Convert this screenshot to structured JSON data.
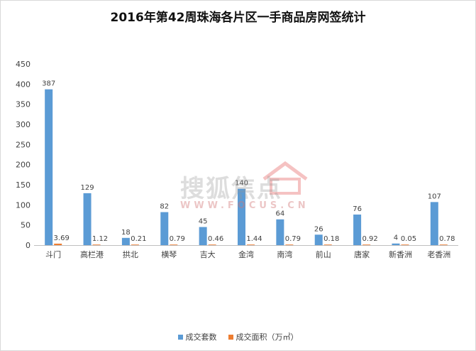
{
  "chart_data": {
    "type": "bar",
    "title": "2016年第42周珠海各片区一手商品房网签统计",
    "categories": [
      "斗门",
      "高栏港",
      "拱北",
      "横琴",
      "吉大",
      "金湾",
      "南湾",
      "前山",
      "唐家",
      "新香洲",
      "老香洲"
    ],
    "series": [
      {
        "name": "成交套数",
        "color": "#5b9bd5",
        "values": [
          387,
          129,
          18,
          82,
          45,
          140,
          64,
          26,
          76,
          4,
          107
        ],
        "labels": [
          "387",
          "129",
          "18",
          "82",
          "45",
          "140",
          "64",
          "26",
          "76",
          "4",
          "107"
        ]
      },
      {
        "name": "成交面积（万㎡）",
        "color": "#ed7d31",
        "values": [
          3.69,
          1.12,
          0.21,
          0.79,
          0.46,
          1.44,
          0.79,
          0.18,
          0.92,
          0.05,
          0.78
        ],
        "labels": [
          "3.69",
          "1.12",
          "0.21",
          "0.79",
          "0.46",
          "1.44",
          "0.79",
          "0.18",
          "0.92",
          "0.05",
          "0.78"
        ]
      }
    ],
    "ylim": [
      0,
      450
    ],
    "yticks": [
      0,
      50,
      100,
      150,
      200,
      250,
      300,
      350,
      400,
      450
    ],
    "grid": false,
    "legend_position": "bottom",
    "xlabel": "",
    "ylabel": ""
  },
  "watermark": {
    "text": "搜狐焦点",
    "url": "WWW.FOCUS.CN"
  }
}
